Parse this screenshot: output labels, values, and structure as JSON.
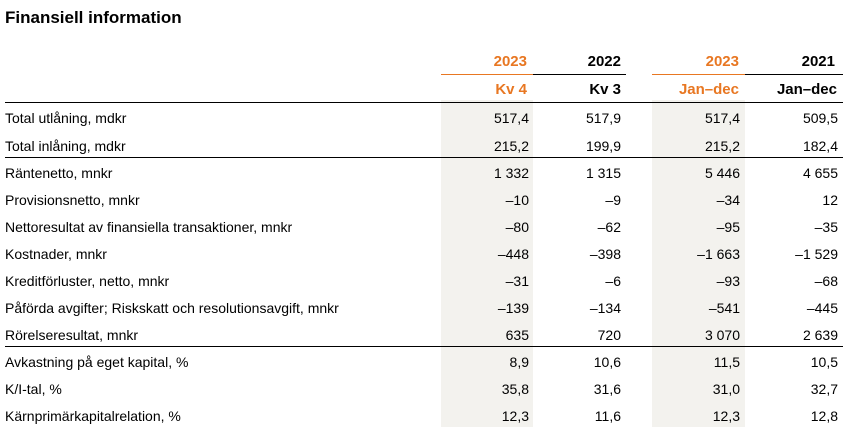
{
  "title": "Finansiell information",
  "header": {
    "years": [
      "2023",
      "2022",
      "2023",
      "2021"
    ],
    "periods": [
      "Kv 4",
      "Kv 3",
      "Jan–dec",
      "Jan–dec"
    ],
    "colors": {
      "accent": "#e87722",
      "shade": "#f3f2ee"
    }
  },
  "rows": [
    {
      "label": "Total utlåning, mdkr",
      "values": [
        "517,4",
        "517,9",
        "517,4",
        "509,5"
      ]
    },
    {
      "label": "Total inlåning, mdkr",
      "values": [
        "215,2",
        "199,9",
        "215,2",
        "182,4"
      ]
    },
    {
      "label": "Räntenetto, mnkr",
      "values": [
        "1 332",
        "1 315",
        "5 446",
        "4 655"
      ]
    },
    {
      "label": "Provisionsnetto, mnkr",
      "values": [
        "–10",
        "–9",
        "–34",
        "12"
      ]
    },
    {
      "label": "Nettoresultat av finansiella transaktioner, mnkr",
      "values": [
        "–80",
        "–62",
        "–95",
        "–35"
      ]
    },
    {
      "label": "Kostnader, mnkr",
      "values": [
        "–448",
        "–398",
        "–1 663",
        "–1 529"
      ]
    },
    {
      "label": "Kreditförluster, netto, mnkr",
      "values": [
        "–31",
        "–6",
        "–93",
        "–68"
      ]
    },
    {
      "label": "Påförda avgifter; Riskskatt och resolutionsavgift, mnkr",
      "values": [
        "–139",
        "–134",
        "–541",
        "–445"
      ]
    },
    {
      "label": "Rörelseresultat, mnkr",
      "values": [
        "635",
        "720",
        "3 070",
        "2 639"
      ]
    },
    {
      "label": "Avkastning på eget kapital, %",
      "values": [
        "8,9",
        "10,6",
        "11,5",
        "10,5"
      ]
    },
    {
      "label": "K/I-tal, %",
      "values": [
        "35,8",
        "31,6",
        "31,0",
        "32,7"
      ]
    },
    {
      "label": "Kärnprimärkapitalrelation, %",
      "values": [
        "12,3",
        "11,6",
        "12,3",
        "12,8"
      ]
    }
  ]
}
